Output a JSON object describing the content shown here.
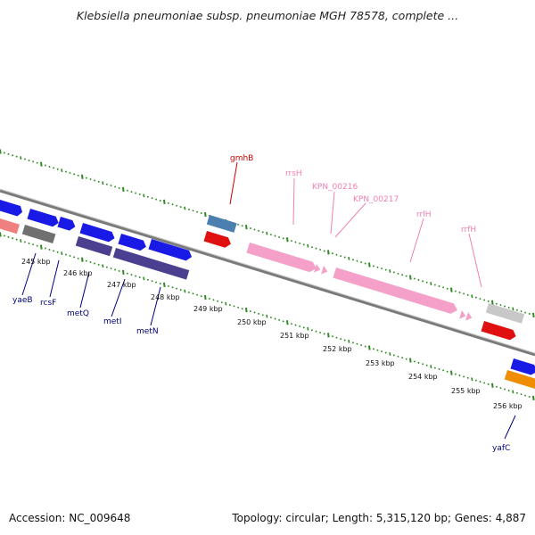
{
  "title": "Klebsiella pneumoniae subsp. pneumoniae MGH 78578, complete ...",
  "accession": "Accession: NC_009648",
  "summary": "Topology: circular; Length: 5,315,120 bp; Genes: 4,887",
  "colors": {
    "backbone": "#8a8a8a",
    "tick": "#2e8b22",
    "gene_blue": "#1a1ae6",
    "gene_purple": "#4b3f8f",
    "gene_red": "#e01010",
    "gene_pink": "#f4a0c8",
    "gene_gray": "#9a9a9a",
    "gene_lightgray": "#c8c8c8",
    "gene_steel": "#4a7fb0",
    "gene_orange": "#f08c00",
    "gene_salmon": "#f08080",
    "label_navy": "#000080",
    "label_red": "#d00000",
    "label_pink": "#f080b0"
  },
  "ruler": [
    {
      "label": "245 kbp"
    },
    {
      "label": "246 kbp"
    },
    {
      "label": "247 kbp"
    },
    {
      "label": "248 kbp"
    },
    {
      "label": "249 kbp"
    },
    {
      "label": "250 kbp"
    },
    {
      "label": "251 kbp"
    },
    {
      "label": "252 kbp"
    },
    {
      "label": "253 kbp"
    },
    {
      "label": "254 kbp"
    },
    {
      "label": "255 kbp"
    },
    {
      "label": "256 kbp"
    }
  ],
  "gene_labels": [
    {
      "name": "gmhB"
    },
    {
      "name": "rrsH"
    },
    {
      "name": "KPN_00216"
    },
    {
      "name": "KPN_00217"
    },
    {
      "name": "rrlH"
    },
    {
      "name": "rrfH"
    },
    {
      "name": "yaeB"
    },
    {
      "name": "rcsF"
    },
    {
      "name": "metQ"
    },
    {
      "name": "metI"
    },
    {
      "name": "metN"
    },
    {
      "name": "yafC"
    }
  ]
}
